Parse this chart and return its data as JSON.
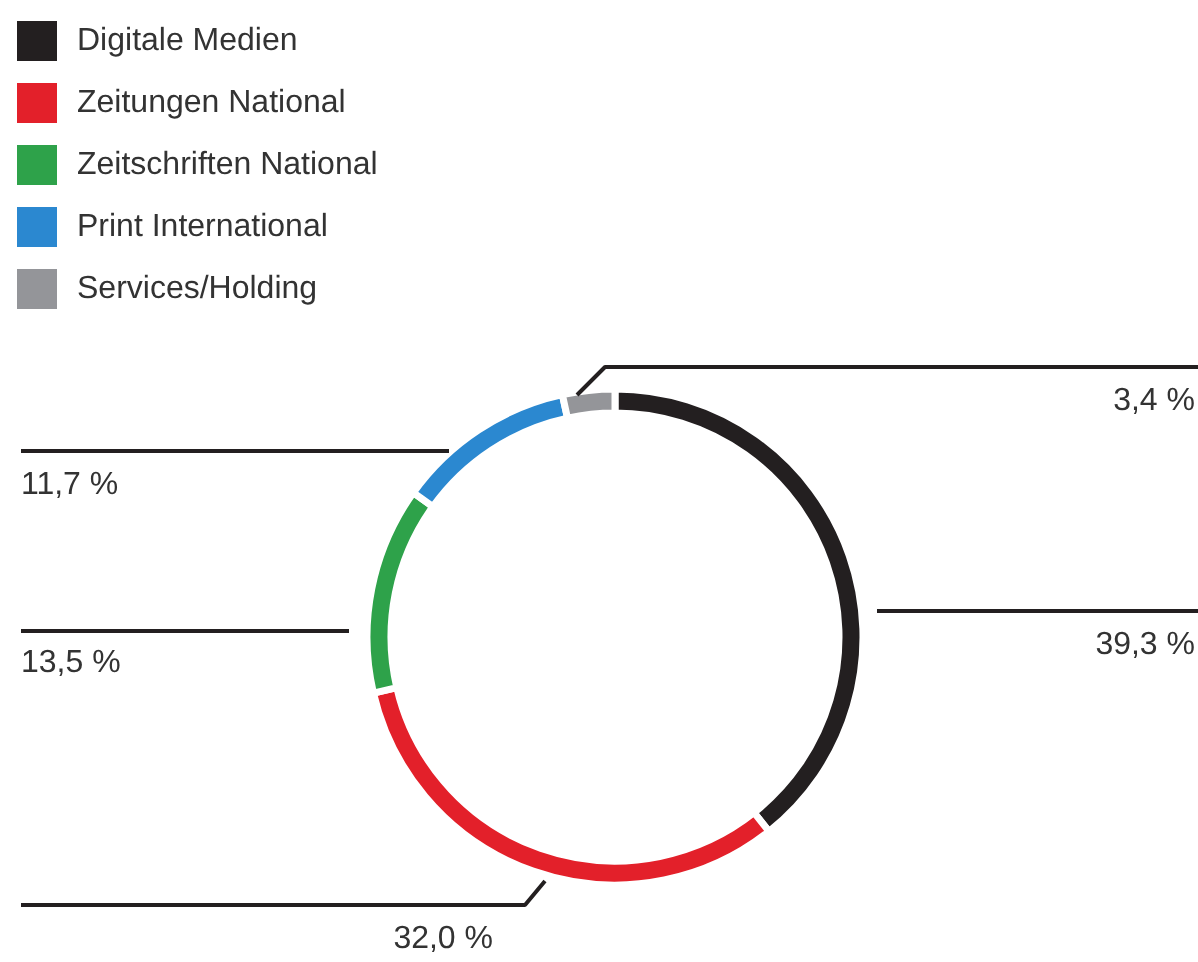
{
  "chart_data": {
    "type": "donut",
    "categories": [
      "Digitale Medien",
      "Zeitungen National",
      "Zeitschriften National",
      "Print International",
      "Services/Holding"
    ],
    "values": [
      39.3,
      32.0,
      13.5,
      11.7,
      3.4
    ],
    "value_labels": [
      "39,3 %",
      "32,0 %",
      "13,5 %",
      "11,7 %",
      "3,4 %"
    ],
    "colors": [
      "#231f20",
      "#e3202a",
      "#2ea24a",
      "#2b88d0",
      "#949599"
    ],
    "legend": "top left"
  }
}
